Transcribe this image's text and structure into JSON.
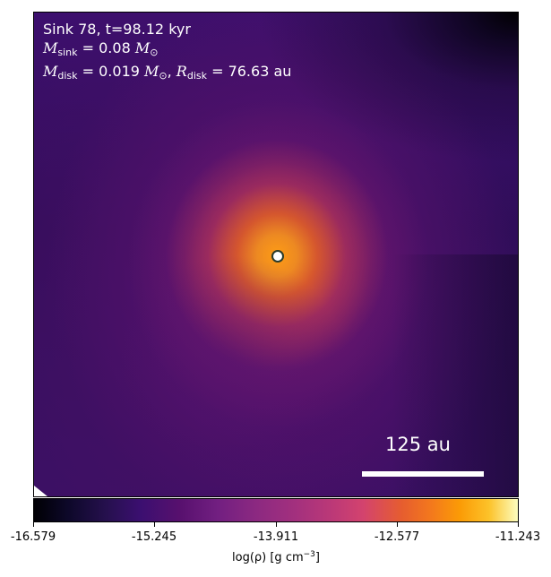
{
  "plot": {
    "title_line": "Sink 78, t=98.12 kyr",
    "sink_mass_label": "M",
    "sink_mass_subscript": "sink",
    "sink_mass_value": "= 0.08",
    "sink_mass_unit": "M",
    "sink_mass_unit_subscript": "⊙",
    "disk_mass_label": "M",
    "disk_mass_subscript": "disk",
    "disk_mass_value": "= 0.019",
    "disk_mass_unit": "M",
    "disk_mass_unit_subscript": "⊙",
    "disk_radius_label": "R",
    "disk_radius_subscript": "disk",
    "disk_radius_value": "= 76.63 au",
    "scale_bar_label": "125 au"
  },
  "colorbar": {
    "ticks": [
      "-16.579",
      "-15.245",
      "-13.911",
      "-12.577",
      "-11.243"
    ],
    "label_prefix": "log(",
    "label_rho": "ρ",
    "label_suffix": ") [g cm",
    "label_power": "−3",
    "label_end": "]"
  },
  "colors": {
    "marker_outline": "#2a3b2b",
    "scale_bar": "#ffffff",
    "colormap": "inferno"
  }
}
